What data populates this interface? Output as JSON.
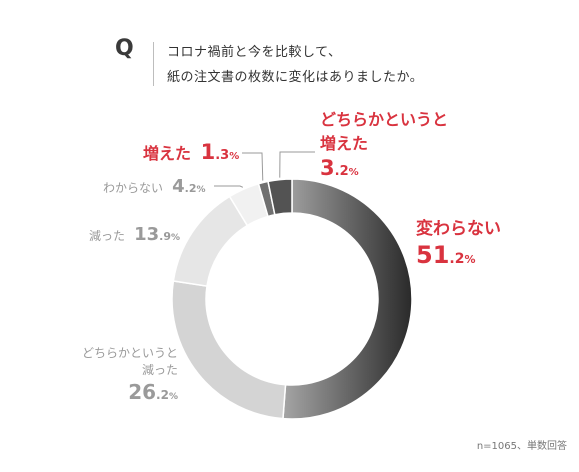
{
  "question": {
    "mark": "Q",
    "line1": "コロナ禍前と今を比較して、",
    "line2": "紙の注文書の枚数に変化はありましたか。"
  },
  "footnote": "n=1065、単数回答",
  "colors": {
    "highlight": "#d9333f",
    "muted": "#9a9a9a",
    "unchanged_dark": "#2a2a2a",
    "unchanged_light": "#a5a5a5",
    "decreased_somewhat": "#d4d4d4",
    "decreased": "#e6e6e6",
    "unknown": "#f1f1f1",
    "increased": "#707070",
    "increased_somewhat": "#535353"
  },
  "chart_data": {
    "type": "pie",
    "donut": true,
    "categories": [
      "変わらない",
      "どちらかというと減った",
      "減った",
      "わからない",
      "増えた",
      "どちらかというと増えた"
    ],
    "values": [
      51.2,
      26.2,
      13.9,
      4.2,
      1.3,
      3.2
    ],
    "unit": "%",
    "labels": {
      "unchanged": {
        "line1": "変わらない",
        "int": "51",
        "dec": ".2",
        "pct": "%"
      },
      "decreased_somewhat": {
        "line1": "どちらかというと",
        "line2": "減った",
        "int": "26",
        "dec": ".2",
        "pct": "%"
      },
      "decreased": {
        "name": "減った",
        "int": "13",
        "dec": ".9",
        "pct": "%"
      },
      "unknown": {
        "name": "わからない",
        "int": "4",
        "dec": ".2",
        "pct": "%"
      },
      "increased": {
        "name": "増えた",
        "int": "1",
        "dec": ".3",
        "pct": "%"
      },
      "increased_somewhat": {
        "line1": "どちらかというと",
        "line2": "増えた",
        "int": "3",
        "dec": ".2",
        "pct": "%"
      }
    }
  }
}
